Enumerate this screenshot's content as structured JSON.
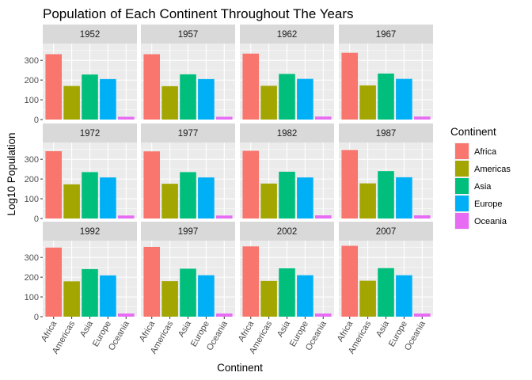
{
  "chart_data": {
    "type": "bar",
    "title": "Population of Each Continent Throughout The Years",
    "xlabel": "Continent",
    "ylabel": "Log10 Population",
    "categories": [
      "Africa",
      "Americas",
      "Asia",
      "Europe",
      "Oceania"
    ],
    "colors": {
      "Africa": "#F8766D",
      "Americas": "#A3A500",
      "Asia": "#00BF7D",
      "Europe": "#00B0F6",
      "Oceania": "#E76BF3"
    },
    "ylim": [
      0,
      385
    ],
    "yticks": [
      0,
      100,
      200,
      300
    ],
    "facets": [
      {
        "label": "1952",
        "values": [
          331,
          170,
          228,
          205,
          14
        ]
      },
      {
        "label": "1957",
        "values": [
          331,
          169,
          229,
          205,
          14
        ]
      },
      {
        "label": "1962",
        "values": [
          334,
          171,
          231,
          206,
          15
        ]
      },
      {
        "label": "1967",
        "values": [
          338,
          173,
          233,
          206,
          15
        ]
      },
      {
        "label": "1972",
        "values": [
          341,
          173,
          235,
          208,
          15
        ]
      },
      {
        "label": "1977",
        "values": [
          340,
          176,
          235,
          208,
          15
        ]
      },
      {
        "label": "1982",
        "values": [
          343,
          177,
          237,
          208,
          16
        ]
      },
      {
        "label": "1987",
        "values": [
          347,
          178,
          240,
          209,
          16
        ]
      },
      {
        "label": "1992",
        "values": [
          350,
          179,
          241,
          209,
          16
        ]
      },
      {
        "label": "1997",
        "values": [
          353,
          180,
          243,
          210,
          16
        ]
      },
      {
        "label": "2002",
        "values": [
          356,
          181,
          245,
          210,
          16
        ]
      },
      {
        "label": "2007",
        "values": [
          359,
          182,
          246,
          210,
          16
        ]
      }
    ],
    "legend": {
      "title": "Continent",
      "position": "right",
      "entries": [
        "Africa",
        "Americas",
        "Asia",
        "Europe",
        "Oceania"
      ]
    },
    "grid": true,
    "facet_layout": {
      "rows": 3,
      "cols": 4
    }
  }
}
